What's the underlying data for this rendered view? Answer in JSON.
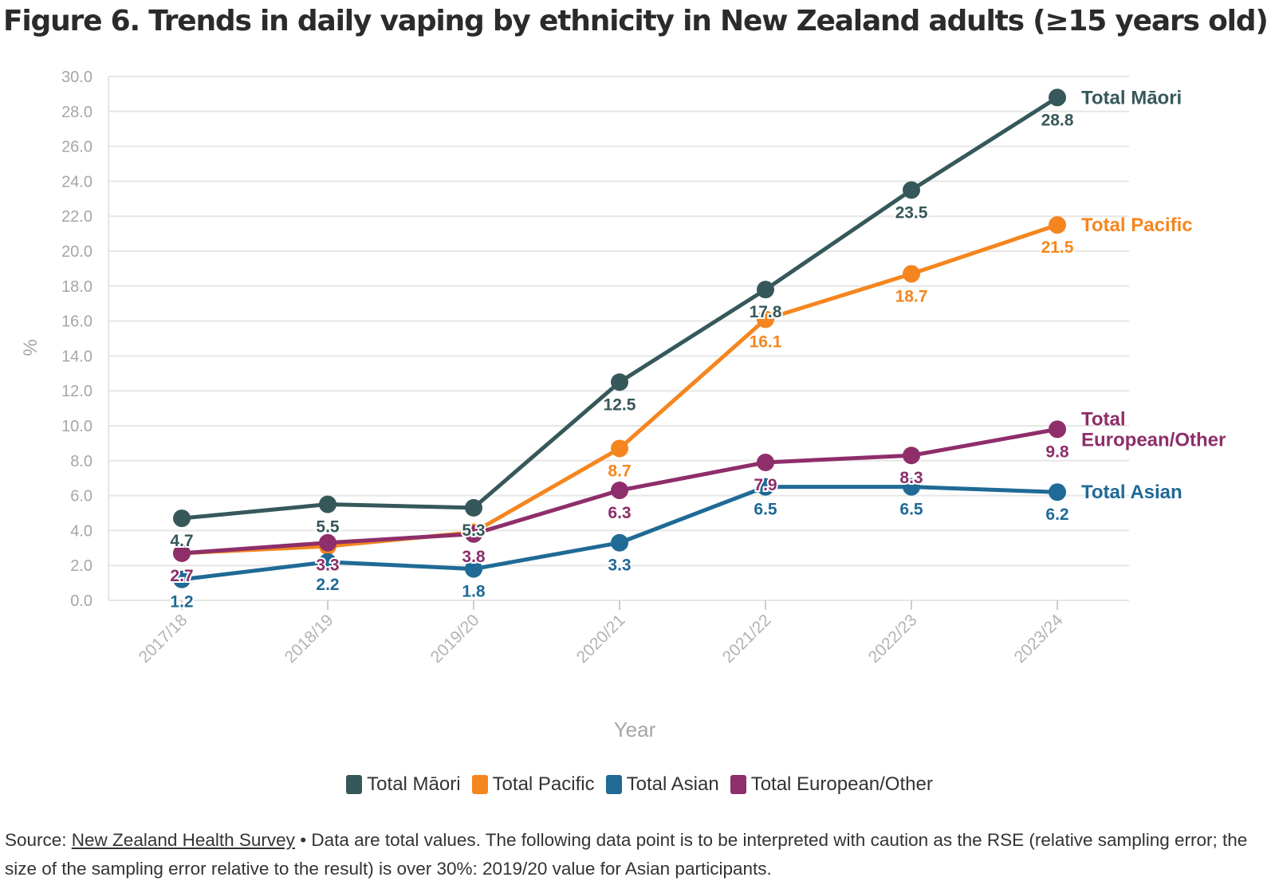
{
  "chart_data": {
    "type": "line",
    "title": "Figure 6. Trends in daily vaping by ethnicity in New Zealand adults (≥15 years old)",
    "xlabel": "Year",
    "ylabel": "%",
    "ylim": [
      0,
      30
    ],
    "ytick_step": 2,
    "grid": true,
    "legend_position": "bottom",
    "categories": [
      "2017/18",
      "2018/19",
      "2019/20",
      "2020/21",
      "2021/22",
      "2022/23",
      "2023/24"
    ],
    "series": [
      {
        "name": "Total Māori",
        "end_label": "Total Māori",
        "color": "#36585a",
        "values": [
          4.7,
          5.5,
          5.3,
          12.5,
          17.8,
          23.5,
          28.8
        ]
      },
      {
        "name": "Total Pacific",
        "end_label": "Total Pacific",
        "color": "#f5861f",
        "values": [
          2.7,
          3.1,
          3.9,
          8.7,
          16.1,
          18.7,
          21.5
        ]
      },
      {
        "name": "Total Asian",
        "end_label": "Total Asian",
        "color": "#1f6a96",
        "values": [
          1.2,
          2.2,
          1.8,
          3.3,
          6.5,
          6.5,
          6.2
        ]
      },
      {
        "name": "Total European/Other",
        "end_label": "Total\nEuropean/Other",
        "color": "#8e2e6a",
        "values": [
          2.7,
          3.3,
          3.8,
          6.3,
          7.9,
          8.3,
          9.8
        ]
      }
    ],
    "data_labels": [
      {
        "series": 0,
        "text": [
          "4.7",
          "5.5",
          "5.3",
          "12.5",
          "17.8",
          "23.5",
          "28.8"
        ]
      },
      {
        "series": 1,
        "text": [
          "",
          "",
          "",
          "8.7",
          "16.1",
          "18.7",
          "21.5"
        ]
      },
      {
        "series": 2,
        "text": [
          "1.2",
          "2.2",
          "1.8",
          "3.3",
          "6.5",
          "6.5",
          "6.2"
        ]
      },
      {
        "series": 3,
        "text": [
          "2.7",
          "3.3",
          "3.8",
          "6.3",
          "7.9",
          "8.3",
          "9.8"
        ]
      }
    ]
  },
  "legend": {
    "items": [
      {
        "label": "Total Māori",
        "color": "#36585a"
      },
      {
        "label": "Total Pacific",
        "color": "#f5861f"
      },
      {
        "label": "Total Asian",
        "color": "#1f6a96"
      },
      {
        "label": "Total European/Other",
        "color": "#8e2e6a"
      }
    ]
  },
  "footer": {
    "prefix": "Source: ",
    "link_text": "New Zealand Health Survey",
    "note": " • Data are total values. The following data point is to be interpreted with caution as the RSE (relative sampling error; the size of the sampling error relative to the result) is over 30%: 2019/20 value for Asian participants."
  }
}
